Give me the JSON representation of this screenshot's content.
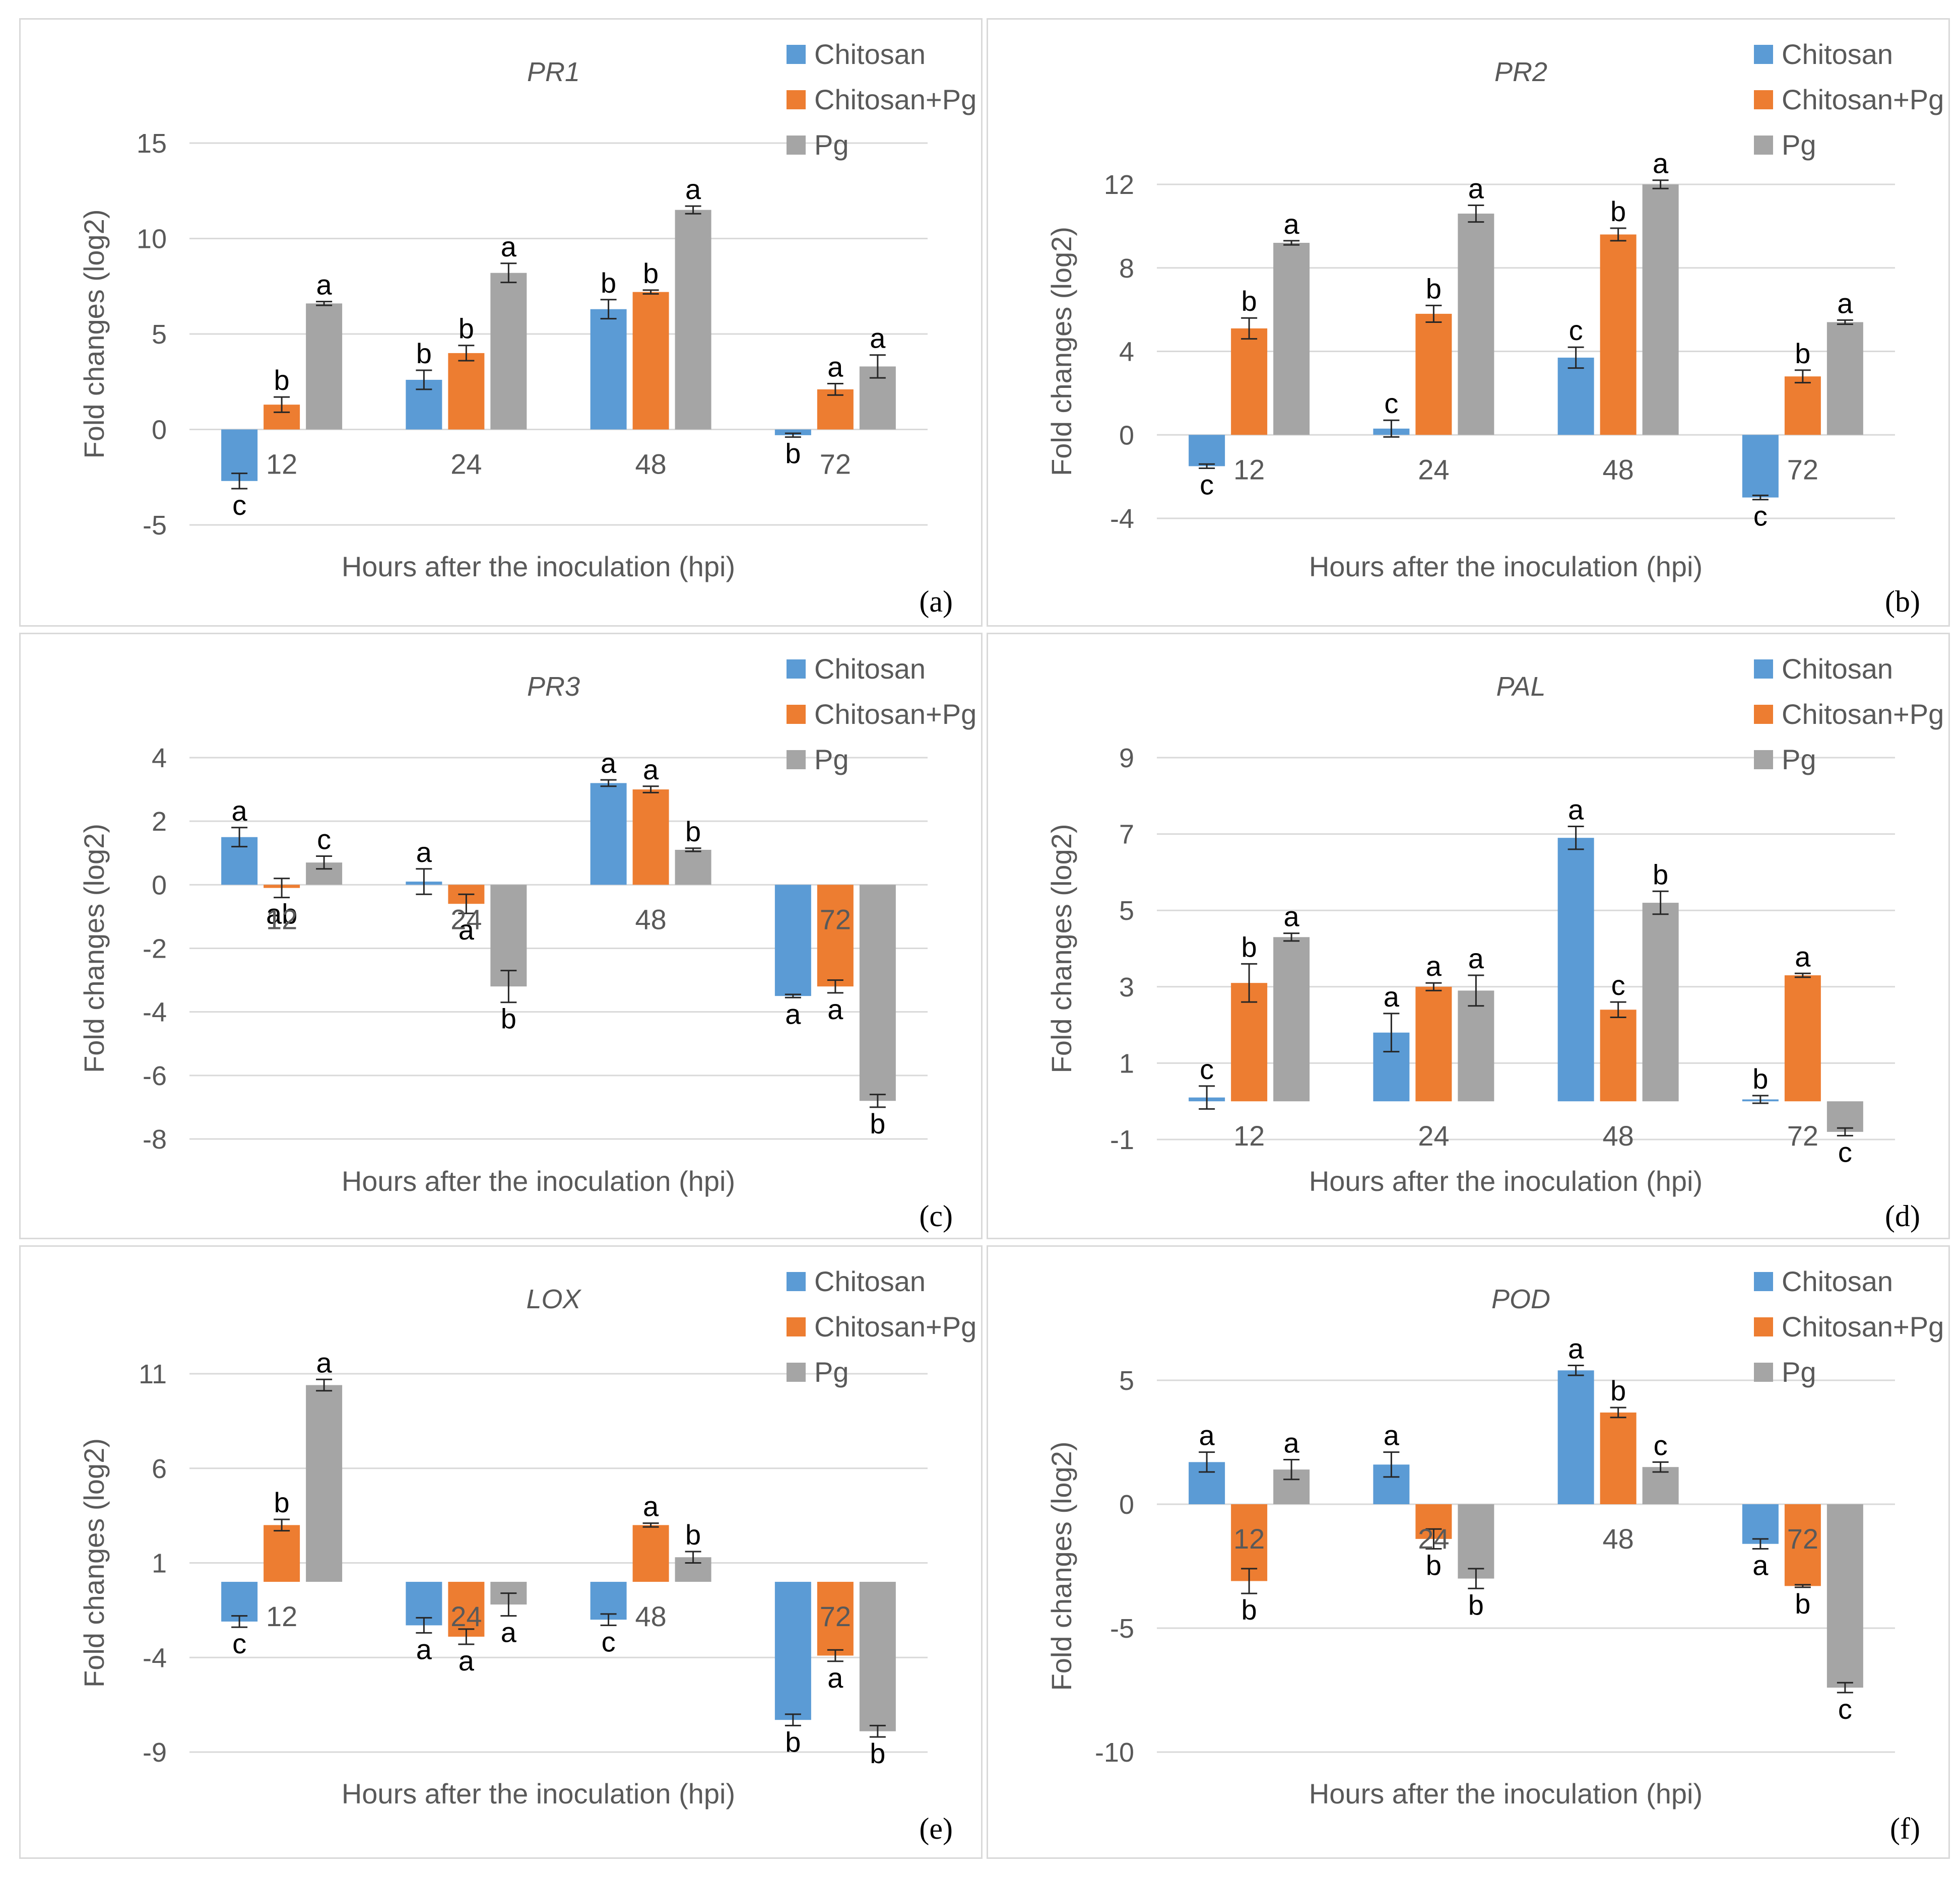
{
  "colors": {
    "Chitosan": "#5b9bd5",
    "Chitosan+Pg": "#ed7d31",
    "Pg": "#a5a5a5"
  },
  "chart_data": [
    {
      "type": "bar",
      "panel": "(a)",
      "title": "PR1",
      "xlabel": "Hours after the inoculation (hpi)",
      "ylabel": "Fold changes (log2)",
      "categories": [
        "12",
        "24",
        "48",
        "72"
      ],
      "ylim": [
        -5,
        15
      ],
      "yticks": [
        15,
        10,
        5,
        0,
        -5
      ],
      "grid": true,
      "legend": "top-right",
      "series": [
        {
          "name": "Chitosan",
          "values": [
            -2.7,
            2.6,
            6.3,
            -0.3
          ],
          "errors": [
            0.4,
            0.5,
            0.5,
            0.1
          ],
          "letters": [
            "c",
            "b",
            "b",
            "b"
          ]
        },
        {
          "name": "Chitosan+Pg",
          "values": [
            1.3,
            4.0,
            7.2,
            2.1
          ],
          "errors": [
            0.4,
            0.4,
            0.1,
            0.3
          ],
          "letters": [
            "b",
            "b",
            "b",
            "a"
          ]
        },
        {
          "name": "Pg",
          "values": [
            6.6,
            8.2,
            11.5,
            3.3
          ],
          "errors": [
            0.1,
            0.5,
            0.2,
            0.6
          ],
          "letters": [
            "a",
            "a",
            "a",
            "a"
          ]
        }
      ]
    },
    {
      "type": "bar",
      "panel": "(b)",
      "title": "PR2",
      "xlabel": "Hours after the inoculation (hpi)",
      "ylabel": "Fold changes (log2)",
      "categories": [
        "12",
        "24",
        "48",
        "72"
      ],
      "ylim": [
        -4,
        12
      ],
      "yticks": [
        12,
        8,
        4,
        0,
        -4
      ],
      "grid": true,
      "legend": "top-right",
      "series": [
        {
          "name": "Chitosan",
          "values": [
            -1.5,
            0.3,
            3.7,
            -3.0
          ],
          "errors": [
            0.1,
            0.4,
            0.5,
            0.1
          ],
          "letters": [
            "c",
            "c",
            "c",
            "c"
          ]
        },
        {
          "name": "Chitosan+Pg",
          "values": [
            5.1,
            5.8,
            9.6,
            2.8
          ],
          "errors": [
            0.5,
            0.4,
            0.3,
            0.3
          ],
          "letters": [
            "b",
            "b",
            "b",
            "b"
          ]
        },
        {
          "name": "Pg",
          "values": [
            9.2,
            10.6,
            12.0,
            5.4
          ],
          "errors": [
            0.1,
            0.4,
            0.2,
            0.1
          ],
          "letters": [
            "a",
            "a",
            "a",
            "a"
          ]
        }
      ]
    },
    {
      "type": "bar",
      "panel": "(c)",
      "title": "PR3",
      "xlabel": "Hours after the inoculation (hpi)",
      "ylabel": "Fold changes (log2)",
      "categories": [
        "12",
        "24",
        "48",
        "72"
      ],
      "ylim": [
        -8,
        4
      ],
      "yticks": [
        4,
        2,
        0,
        -2,
        -4,
        -6,
        -8
      ],
      "grid": true,
      "legend": "top-right",
      "series": [
        {
          "name": "Chitosan",
          "values": [
            1.5,
            0.1,
            3.2,
            -3.5
          ],
          "errors": [
            0.3,
            0.4,
            0.1,
            0.05
          ],
          "letters": [
            "a",
            "a",
            "a",
            "a"
          ]
        },
        {
          "name": "Chitosan+Pg",
          "values": [
            -0.1,
            -0.6,
            3.0,
            -3.2
          ],
          "errors": [
            0.3,
            0.3,
            0.1,
            0.2
          ],
          "letters": [
            "ab",
            "a",
            "a",
            "a"
          ]
        },
        {
          "name": "Pg",
          "values": [
            0.7,
            -3.2,
            1.1,
            -6.8
          ],
          "errors": [
            0.2,
            0.5,
            0.05,
            0.2
          ],
          "letters": [
            "c",
            "b",
            "b",
            "b"
          ]
        }
      ]
    },
    {
      "type": "bar",
      "panel": "(d)",
      "title": "PAL",
      "xlabel": "Hours after the inoculation (hpi)",
      "ylabel": "Fold changes (log2)",
      "categories": [
        "12",
        "24",
        "48",
        "72"
      ],
      "ylim": [
        -1,
        9
      ],
      "yticks": [
        9,
        7,
        5,
        3,
        1,
        -1
      ],
      "grid": true,
      "legend": "top-right",
      "series": [
        {
          "name": "Chitosan",
          "values": [
            0.1,
            1.8,
            6.9,
            0.05
          ],
          "errors": [
            0.3,
            0.5,
            0.3,
            0.1
          ],
          "letters": [
            "c",
            "a",
            "a",
            "b"
          ]
        },
        {
          "name": "Chitosan+Pg",
          "values": [
            3.1,
            3.0,
            2.4,
            3.3
          ],
          "errors": [
            0.5,
            0.1,
            0.2,
            0.05
          ],
          "letters": [
            "b",
            "a",
            "c",
            "a"
          ]
        },
        {
          "name": "Pg",
          "values": [
            4.3,
            2.9,
            5.2,
            -0.8
          ],
          "errors": [
            0.1,
            0.4,
            0.3,
            0.1
          ],
          "letters": [
            "a",
            "a",
            "b",
            "c"
          ]
        }
      ]
    },
    {
      "type": "bar",
      "panel": "(e)",
      "title": "LOX",
      "xlabel": "Hours after the inoculation (hpi)",
      "ylabel": "Fold changes (log2)",
      "categories": [
        "12",
        "24",
        "48",
        "72"
      ],
      "ylim": [
        -9,
        11
      ],
      "yticks": [
        11,
        6,
        1,
        -4,
        -9
      ],
      "grid": true,
      "legend": "top-right",
      "series": [
        {
          "name": "Chitosan",
          "values": [
            -2.1,
            -2.3,
            -2.0,
            -7.3
          ],
          "errors": [
            0.3,
            0.4,
            0.3,
            0.3
          ],
          "letters": [
            "c",
            "a",
            "c",
            "b"
          ]
        },
        {
          "name": "Chitosan+Pg",
          "values": [
            3.0,
            -2.9,
            3.0,
            -3.9
          ],
          "errors": [
            0.3,
            0.4,
            0.1,
            0.3
          ],
          "letters": [
            "b",
            "a",
            "a",
            "a"
          ]
        },
        {
          "name": "Pg",
          "values": [
            10.4,
            -1.2,
            1.3,
            -7.9
          ],
          "errors": [
            0.3,
            0.6,
            0.3,
            0.3
          ],
          "letters": [
            "a",
            "a",
            "b",
            "b"
          ]
        }
      ]
    },
    {
      "type": "bar",
      "panel": "(f)",
      "title": "POD",
      "xlabel": "Hours after the inoculation (hpi)",
      "ylabel": "Fold changes (log2)",
      "categories": [
        "12",
        "24",
        "48",
        "72"
      ],
      "ylim": [
        -10,
        5
      ],
      "yticks": [
        5,
        0,
        -5,
        -10
      ],
      "grid": true,
      "legend": "top-right",
      "series": [
        {
          "name": "Chitosan",
          "values": [
            1.7,
            1.6,
            5.4,
            -1.6
          ],
          "errors": [
            0.4,
            0.5,
            0.2,
            0.2
          ],
          "letters": [
            "a",
            "a",
            "a",
            "a"
          ]
        },
        {
          "name": "Chitosan+Pg",
          "values": [
            -3.1,
            -1.4,
            3.7,
            -3.3
          ],
          "errors": [
            0.5,
            0.4,
            0.2,
            0.05
          ],
          "letters": [
            "b",
            "b",
            "b",
            "b"
          ]
        },
        {
          "name": "Pg",
          "values": [
            1.4,
            -3.0,
            1.5,
            -7.4
          ],
          "errors": [
            0.4,
            0.4,
            0.2,
            0.2
          ],
          "letters": [
            "a",
            "b",
            "c",
            "c"
          ]
        }
      ]
    }
  ]
}
